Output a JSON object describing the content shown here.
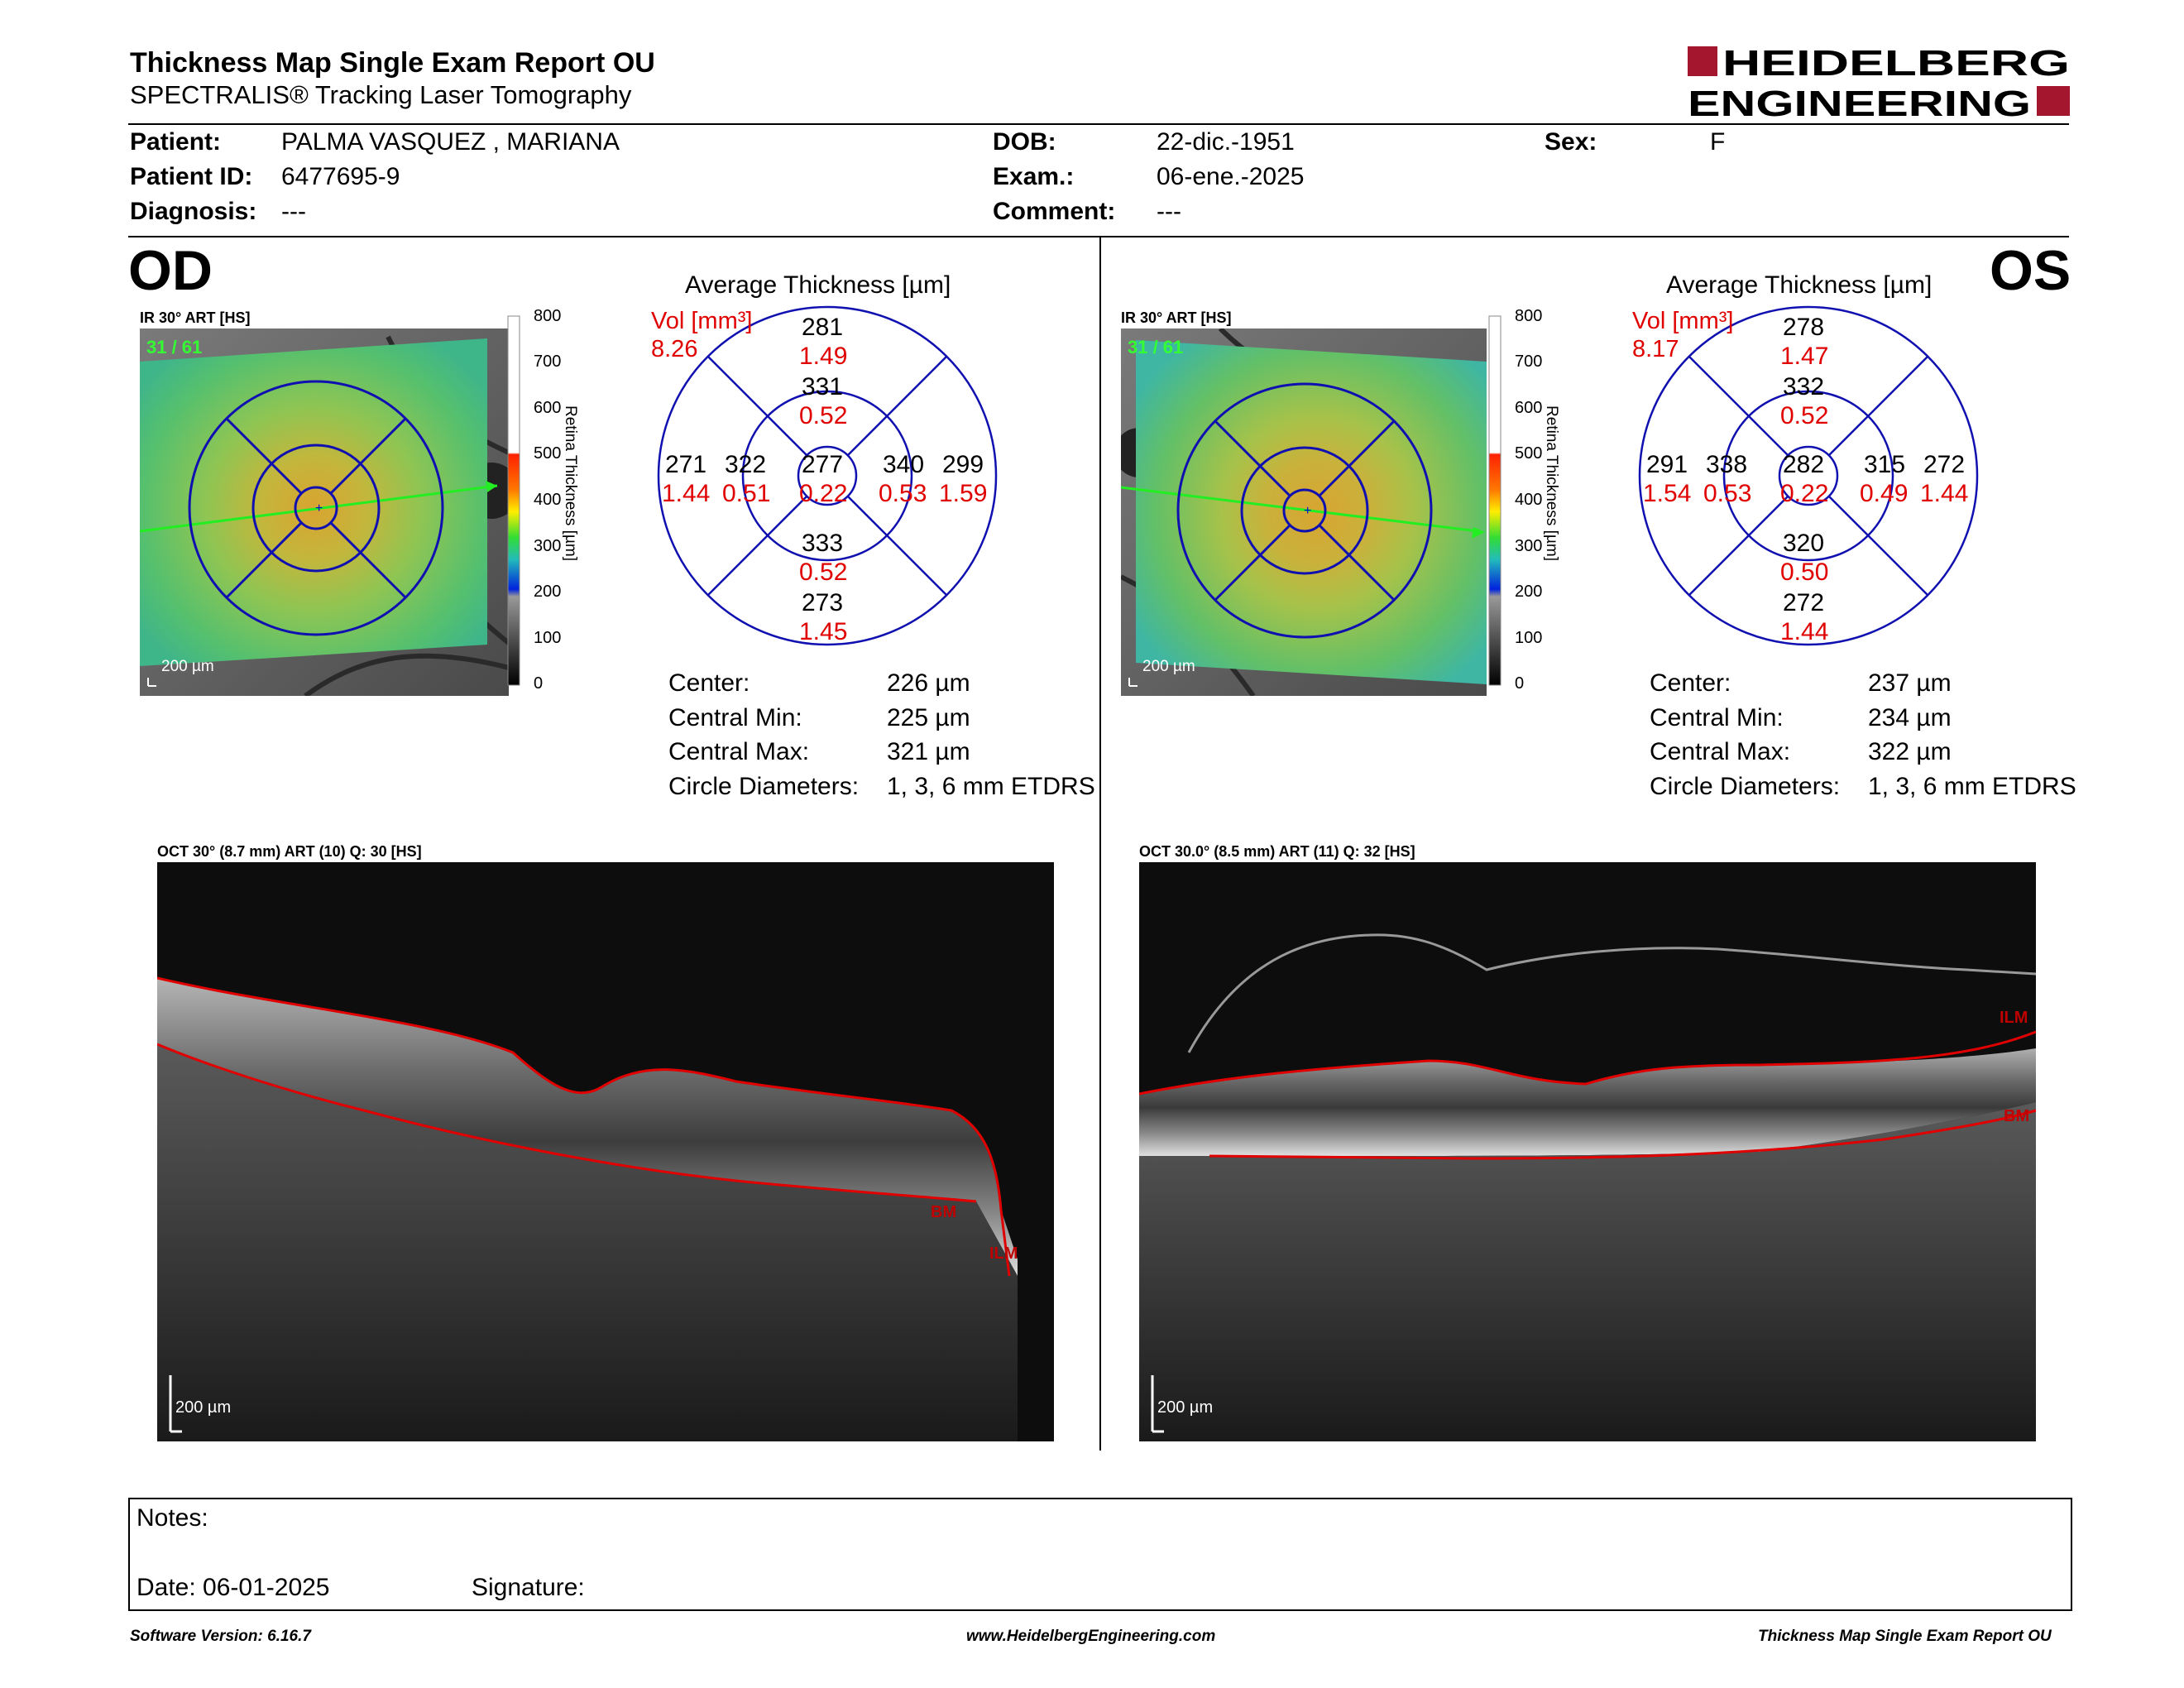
{
  "header": {
    "title": "Thickness Map Single Exam Report OU",
    "subtitle": "SPECTRALIS® Tracking Laser Tomography",
    "logo_line1": "HEIDELBERG",
    "logo_line2": "ENGINEERING",
    "brand_color": "#a3162d"
  },
  "patient": {
    "patient_label": "Patient:",
    "patient_value": "PALMA VASQUEZ , MARIANA",
    "id_label": "Patient ID:",
    "id_value": "6477695-9",
    "diagnosis_label": "Diagnosis:",
    "diagnosis_value": "---",
    "dob_label": "DOB:",
    "dob_value": "22-dic.-1951",
    "exam_label": "Exam.:",
    "exam_value": "06-ene.-2025",
    "comment_label": "Comment:",
    "comment_value": "---",
    "sex_label": "Sex:",
    "sex_value": "F"
  },
  "od": {
    "eye": "OD",
    "map_label": "IR 30° ART [HS]",
    "map_count": "31 / 61",
    "map_scale": "200 µm",
    "scale_ticks": [
      "800",
      "700",
      "600",
      "500",
      "400",
      "300",
      "200",
      "100",
      "0"
    ],
    "scale_title": "Retina Thickness [µm]",
    "avg_title": "Average Thickness [µm]",
    "vol_label": "Vol [mm³]",
    "vol_value": "8.26",
    "sectors": {
      "outer_sup": {
        "t": "281",
        "v": "1.49"
      },
      "inner_sup": {
        "t": "331",
        "v": "0.52"
      },
      "outer_left": {
        "t": "271",
        "v": "1.44"
      },
      "inner_left": {
        "t": "322",
        "v": "0.51"
      },
      "center": {
        "t": "277",
        "v": "0.22"
      },
      "inner_right": {
        "t": "340",
        "v": "0.53"
      },
      "outer_right": {
        "t": "299",
        "v": "1.59"
      },
      "inner_inf": {
        "t": "333",
        "v": "0.52"
      },
      "outer_inf": {
        "t": "273",
        "v": "1.45"
      }
    },
    "stats": {
      "center_label": "Center:",
      "center_value": "226 µm",
      "min_label": "Central Min:",
      "min_value": "225 µm",
      "max_label": "Central Max:",
      "max_value": "321 µm",
      "diam_label": "Circle Diameters:",
      "diam_value": "1, 3, 6 mm ETDRS"
    },
    "oct_label": "OCT 30° (8.7 mm) ART (10) Q: 30 [HS]",
    "oct_scale": "200 µm",
    "ilm": "ILM",
    "bm": "BM"
  },
  "os": {
    "eye": "OS",
    "map_label": "IR 30° ART [HS]",
    "map_count": "31 / 61",
    "map_scale": "200 µm",
    "scale_ticks": [
      "800",
      "700",
      "600",
      "500",
      "400",
      "300",
      "200",
      "100",
      "0"
    ],
    "scale_title": "Retina Thickness [µm]",
    "avg_title": "Average Thickness [µm]",
    "vol_label": "Vol [mm³]",
    "vol_value": "8.17",
    "sectors": {
      "outer_sup": {
        "t": "278",
        "v": "1.47"
      },
      "inner_sup": {
        "t": "332",
        "v": "0.52"
      },
      "outer_left": {
        "t": "291",
        "v": "1.54"
      },
      "inner_left": {
        "t": "338",
        "v": "0.53"
      },
      "center": {
        "t": "282",
        "v": "0.22"
      },
      "inner_right": {
        "t": "315",
        "v": "0.49"
      },
      "outer_right": {
        "t": "272",
        "v": "1.44"
      },
      "inner_inf": {
        "t": "320",
        "v": "0.50"
      },
      "outer_inf": {
        "t": "272",
        "v": "1.44"
      }
    },
    "stats": {
      "center_label": "Center:",
      "center_value": "237 µm",
      "min_label": "Central Min:",
      "min_value": "234 µm",
      "max_label": "Central Max:",
      "max_value": "322 µm",
      "diam_label": "Circle Diameters:",
      "diam_value": "1, 3, 6 mm ETDRS"
    },
    "oct_label": "OCT 30.0° (8.5 mm) ART (11) Q: 32 [HS]",
    "oct_scale": "200 µm",
    "ilm": "ILM",
    "bm": "BM"
  },
  "notes": {
    "notes_label": "Notes:",
    "date_label": "Date: 06-01-2025",
    "signature_label": "Signature:"
  },
  "footer": {
    "software": "Software Version: 6.16.7",
    "website": "www.HeidelbergEngineering.com",
    "report": "Thickness Map Single Exam Report OU"
  }
}
